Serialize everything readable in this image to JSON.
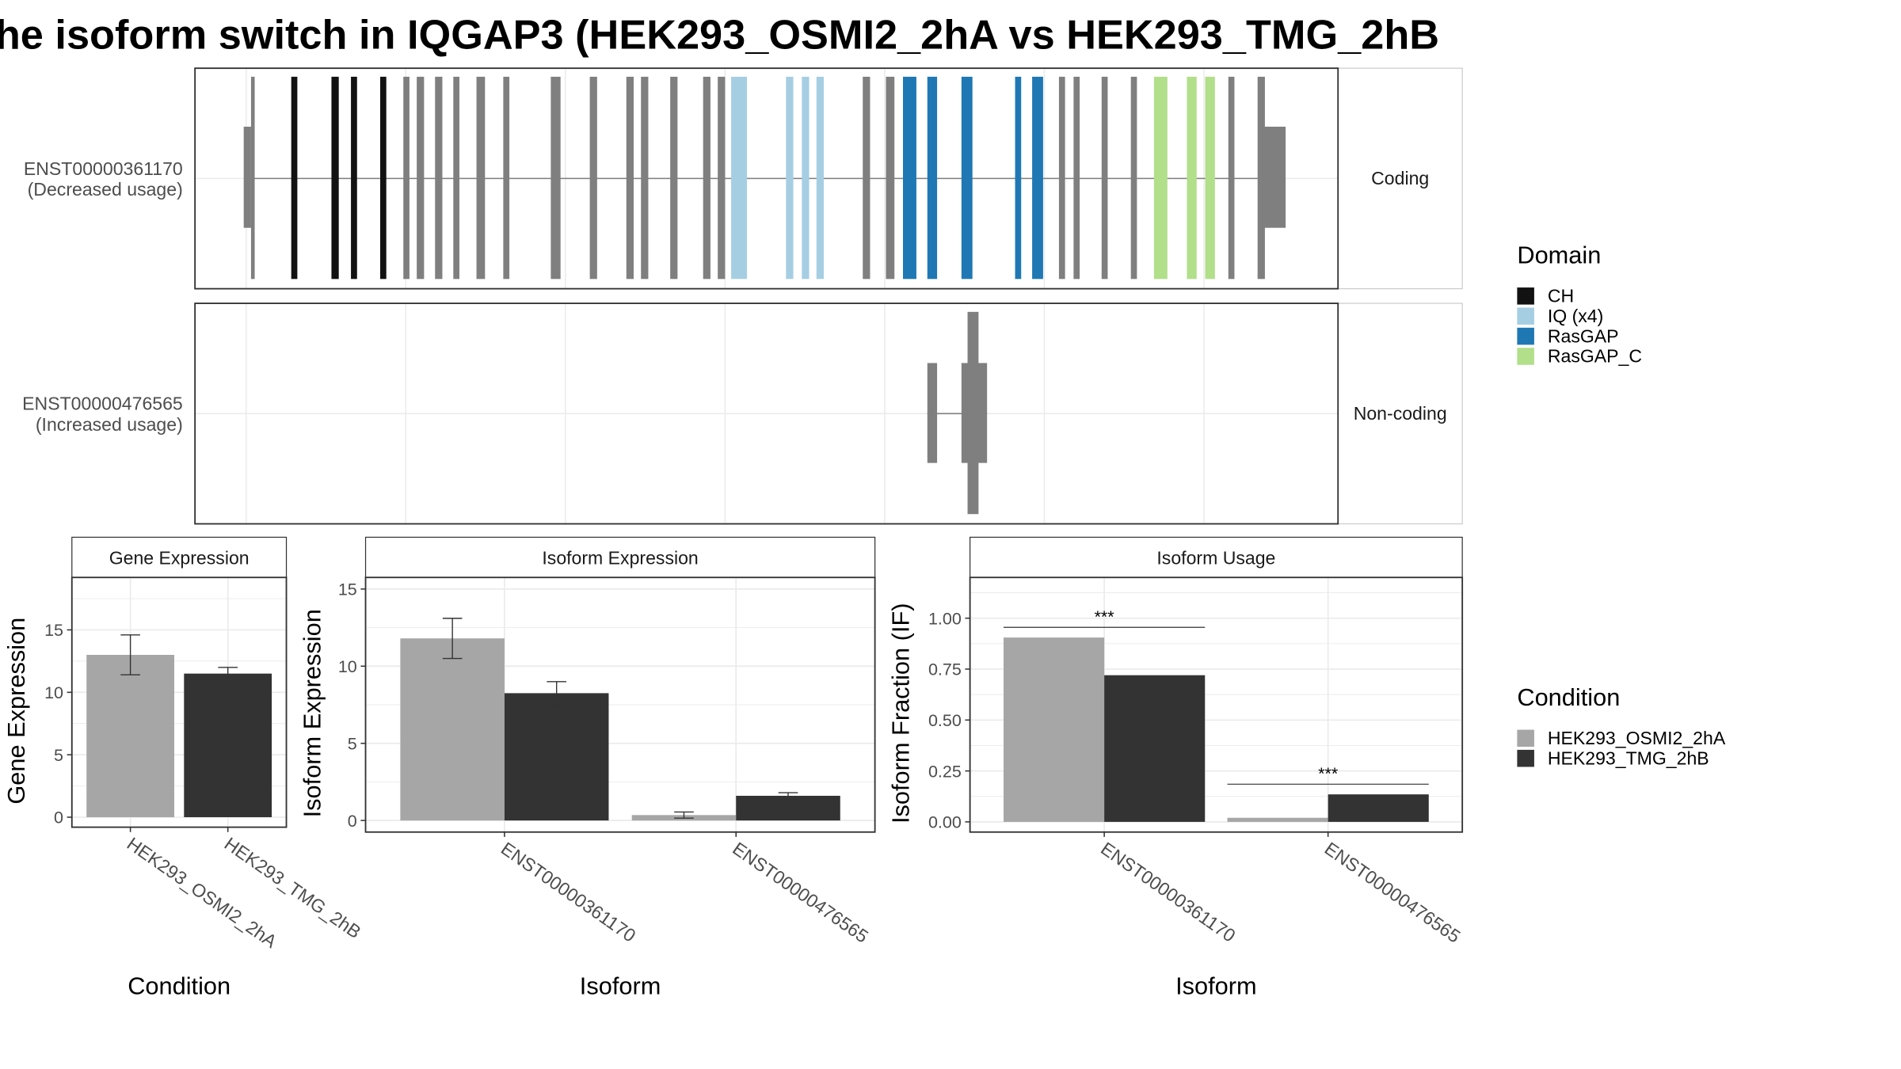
{
  "title": "he isoform switch in IQGAP3 (HEK293_OSMI2_2hA vs HEK293_TMG_2hB",
  "colors": {
    "exon": "#7f7f7f",
    "intron_line": "#7f7f7f",
    "condition_a": "#a6a6a6",
    "condition_b": "#333333",
    "domains": {
      "CH": "#121212",
      "IQ (x4)": "#a6cee3",
      "RasGAP": "#1f78b4",
      "RasGAP_C": "#b2df8a"
    }
  },
  "transcript_panel": {
    "transcripts": [
      {
        "id": "ENST00000361170",
        "usage": "(Decreased usage)",
        "type": "Coding",
        "utr5": [
          200,
          206
        ],
        "utr3": [
          1034,
          1055
        ],
        "cds_exons": [
          {
            "s": 206,
            "e": 209,
            "d": null
          },
          {
            "s": 239,
            "e": 244,
            "d": "CH"
          },
          {
            "s": 272,
            "e": 278,
            "d": "CH"
          },
          {
            "s": 288,
            "e": 293,
            "d": "CH"
          },
          {
            "s": 312,
            "e": 317,
            "d": "CH"
          },
          {
            "s": 331,
            "e": 336,
            "d": null
          },
          {
            "s": 342,
            "e": 348,
            "d": null
          },
          {
            "s": 357,
            "e": 363,
            "d": null
          },
          {
            "s": 372,
            "e": 377,
            "d": null
          },
          {
            "s": 391,
            "e": 398,
            "d": null
          },
          {
            "s": 413,
            "e": 418,
            "d": null
          },
          {
            "s": 452,
            "e": 460,
            "d": null
          },
          {
            "s": 484,
            "e": 490,
            "d": null
          },
          {
            "s": 514,
            "e": 520,
            "d": null
          },
          {
            "s": 526,
            "e": 532,
            "d": null
          },
          {
            "s": 550,
            "e": 556,
            "d": null
          },
          {
            "s": 577,
            "e": 583,
            "d": null
          },
          {
            "s": 589,
            "e": 595,
            "d": null
          },
          {
            "s": 600,
            "e": 613,
            "d": "IQ (x4)"
          },
          {
            "s": 645,
            "e": 651,
            "d": "IQ (x4)"
          },
          {
            "s": 658,
            "e": 664,
            "d": "IQ (x4)"
          },
          {
            "s": 670,
            "e": 676,
            "d": "IQ (x4)"
          },
          {
            "s": 708,
            "e": 714,
            "d": null
          },
          {
            "s": 727,
            "e": 734,
            "d": null
          },
          {
            "s": 741,
            "e": 752,
            "d": "RasGAP"
          },
          {
            "s": 761,
            "e": 769,
            "d": "RasGAP"
          },
          {
            "s": 789,
            "e": 798,
            "d": "RasGAP"
          },
          {
            "s": 833,
            "e": 838,
            "d": "RasGAP"
          },
          {
            "s": 847,
            "e": 856,
            "d": "RasGAP"
          },
          {
            "s": 869,
            "e": 874,
            "d": null
          },
          {
            "s": 881,
            "e": 886,
            "d": null
          },
          {
            "s": 904,
            "e": 909,
            "d": null
          },
          {
            "s": 928,
            "e": 933,
            "d": null
          },
          {
            "s": 947,
            "e": 958,
            "d": "RasGAP_C"
          },
          {
            "s": 974,
            "e": 982,
            "d": "RasGAP_C"
          },
          {
            "s": 989,
            "e": 997,
            "d": "RasGAP_C"
          },
          {
            "s": 1008,
            "e": 1013,
            "d": null
          },
          {
            "s": 1032,
            "e": 1038,
            "d": null
          }
        ]
      },
      {
        "id": "ENST00000476565",
        "usage": "(Increased usage)",
        "type": "Non-coding",
        "nc_exons": [
          {
            "s": 761,
            "e": 769
          },
          {
            "s": 789,
            "e": 810
          }
        ],
        "tall_exon": {
          "s": 794,
          "e": 803
        }
      }
    ]
  },
  "legend_domain": {
    "title": "Domain",
    "items": [
      "CH",
      "IQ (x4)",
      "RasGAP",
      "RasGAP_C"
    ]
  },
  "legend_condition": {
    "title": "Condition",
    "items": [
      "HEK293_OSMI2_2hA",
      "HEK293_TMG_2hB"
    ]
  },
  "chart_data": [
    {
      "type": "bar",
      "strip_title": "Gene Expression",
      "xlabel": "Condition",
      "ylabel": "Gene Expression",
      "ylim": [
        -0.8,
        19.2
      ],
      "yticks": [
        0,
        5,
        10,
        15
      ],
      "categories": [
        "HEK293_OSMI2_2hA",
        "HEK293_TMG_2hB"
      ],
      "values": [
        13.0,
        11.5
      ],
      "errors": [
        [
          11.4,
          14.6
        ],
        [
          11.0,
          12.0
        ]
      ]
    },
    {
      "type": "bar",
      "strip_title": "Isoform Expression",
      "xlabel": "Isoform",
      "ylabel": "Isoform Expression",
      "ylim": [
        -0.75,
        15.75
      ],
      "yticks": [
        0,
        5,
        10,
        15
      ],
      "categories": [
        "ENST00000361170",
        "ENST00000476565"
      ],
      "series": [
        {
          "name": "HEK293_OSMI2_2hA",
          "values": [
            11.8,
            0.35
          ],
          "errors": [
            [
              10.5,
              13.1
            ],
            [
              0.15,
              0.55
            ]
          ]
        },
        {
          "name": "HEK293_TMG_2hB",
          "values": [
            8.25,
            1.6
          ],
          "errors": [
            [
              7.5,
              9.0
            ],
            [
              1.4,
              1.8
            ]
          ]
        }
      ]
    },
    {
      "type": "bar",
      "strip_title": "Isoform Usage",
      "xlabel": "Isoform",
      "ylabel": "Isoform Fraction (IF)",
      "ylim": [
        -0.05,
        1.2
      ],
      "yticks": [
        "0.00",
        "0.25",
        "0.50",
        "0.75",
        "1.00"
      ],
      "categories": [
        "ENST00000361170",
        "ENST00000476565"
      ],
      "series": [
        {
          "name": "HEK293_OSMI2_2hA",
          "values": [
            0.905,
            0.02
          ]
        },
        {
          "name": "HEK293_TMG_2hB",
          "values": [
            0.72,
            0.135
          ]
        }
      ],
      "significance": [
        {
          "label": "***",
          "y": 0.955
        },
        {
          "label": "***",
          "y": 0.185
        }
      ]
    }
  ]
}
